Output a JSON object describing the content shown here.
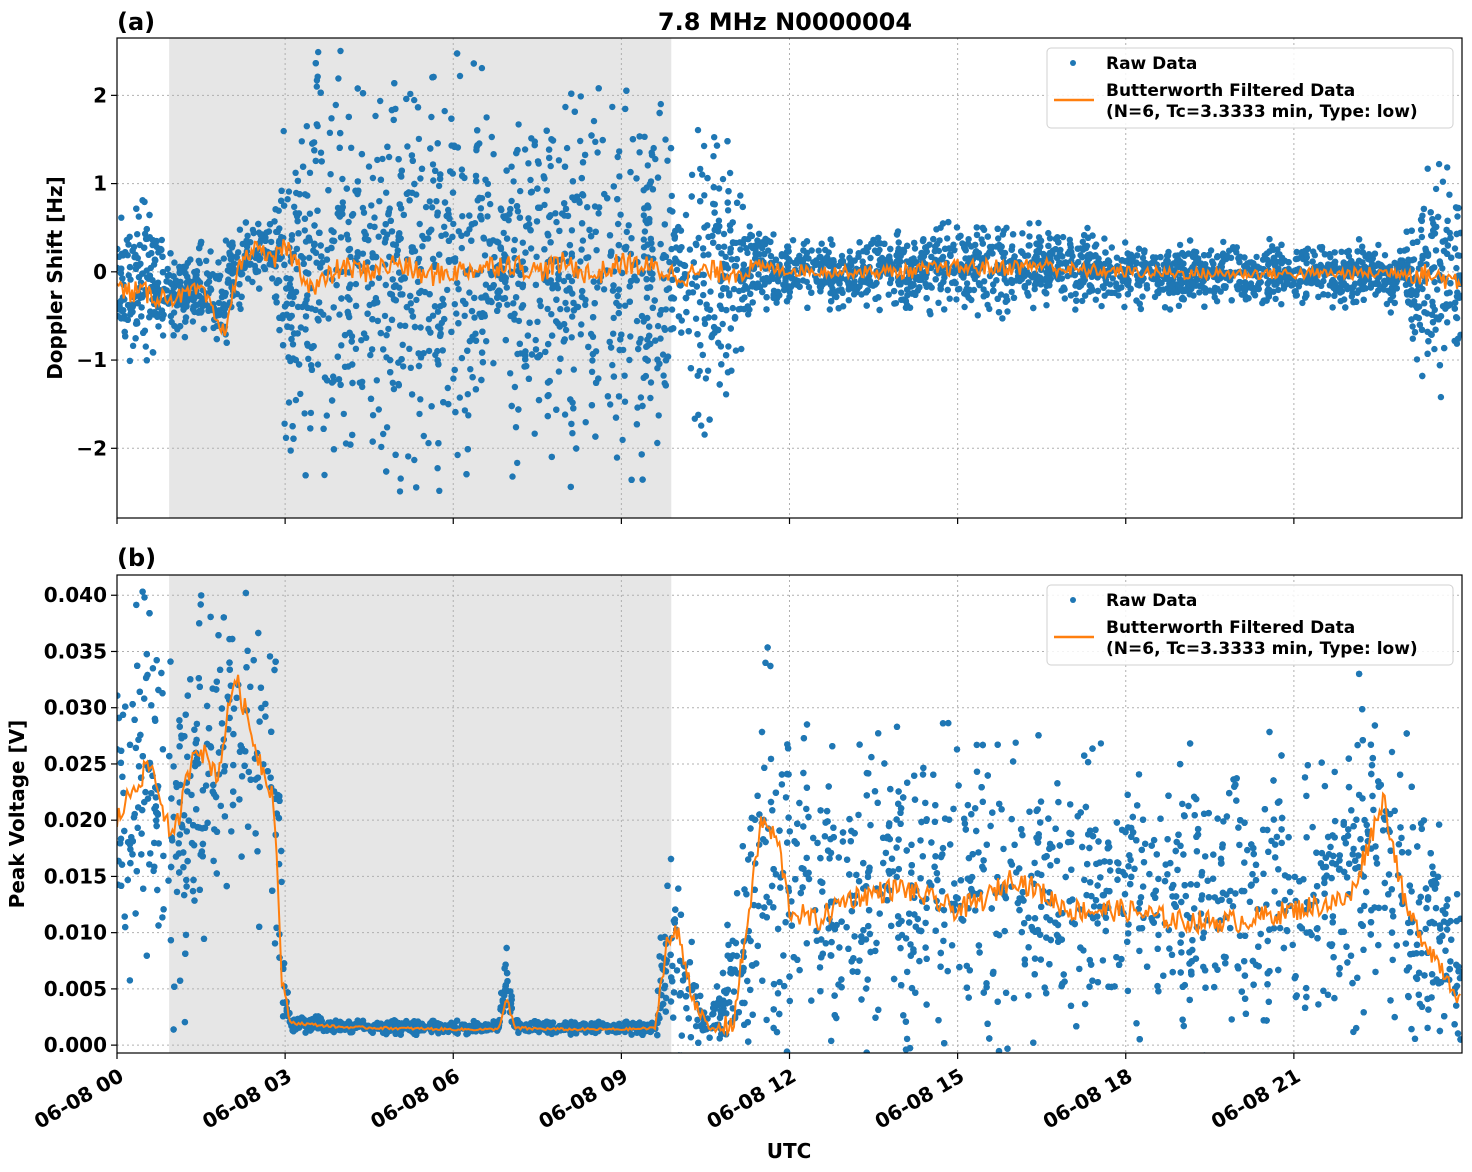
{
  "chart_data": [
    {
      "type": "scatter",
      "panel_label": "(a)",
      "title": "7.8 MHz N0000004",
      "xlabel": "",
      "ylabel": "Doppler Shift [Hz]",
      "xlim_hours": [
        0,
        24
      ],
      "ylim": [
        -2.79,
        2.65
      ],
      "yticks": [
        -2,
        -1,
        0,
        1,
        2
      ],
      "ytick_labels": [
        "−2",
        "−1",
        "0",
        "1",
        "2"
      ],
      "grid": true,
      "shaded_interval_hours": [
        0.93,
        9.89
      ],
      "legend": {
        "placement": "top-right",
        "entries": [
          "Raw Data",
          "Butterworth Filtered Data",
          "(N=6, Tc=3.3333 min, Type: low)"
        ]
      },
      "series": [
        {
          "name": "Raw Data",
          "kind": "scatter",
          "color": "#1f77b4",
          "envelope": {
            "x": [
              0,
              0.5,
              0.9,
              1.0,
              1.5,
              1.9,
              2.0,
              2.5,
              2.8,
              3.0,
              3.5,
              4.5,
              5.5,
              6.5,
              6.9,
              7.0,
              8.0,
              9.0,
              9.8,
              10.0,
              10.3,
              10.6,
              10.9,
              11.2,
              11.6,
              13,
              15,
              16.5,
              18,
              20,
              22,
              23,
              23.5,
              23.8,
              24
            ],
            "low": [
              -0.6,
              -0.7,
              -0.5,
              -0.5,
              -0.5,
              -0.8,
              -0.4,
              0.0,
              -0.1,
              -1.2,
              -1.4,
              -1.4,
              -1.4,
              -1.4,
              -0.3,
              -1.3,
              -1.4,
              -1.4,
              -1.3,
              -0.2,
              -1.0,
              -1.2,
              -0.8,
              -0.4,
              -0.25,
              -0.25,
              -0.3,
              -0.25,
              -0.25,
              -0.25,
              -0.25,
              -0.3,
              -1.0,
              -0.9,
              -0.5
            ],
            "high": [
              0.3,
              0.4,
              0.1,
              0.1,
              0.1,
              0.0,
              0.3,
              0.45,
              0.45,
              1.2,
              1.4,
              1.4,
              1.4,
              1.4,
              0.4,
              1.3,
              1.4,
              1.4,
              1.3,
              0.4,
              1.2,
              1.3,
              0.9,
              0.5,
              0.25,
              0.2,
              0.35,
              0.4,
              0.2,
              0.2,
              0.2,
              0.25,
              0.9,
              0.7,
              0.3
            ]
          }
        },
        {
          "name": "Butterworth Filtered Data",
          "kind": "line",
          "color": "#ff7f0e",
          "x": [
            0,
            0.5,
            1,
            1.5,
            1.9,
            2.2,
            2.5,
            2.8,
            3,
            3.5,
            4,
            4.5,
            5,
            5.5,
            6,
            6.5,
            7,
            7.5,
            8,
            8.5,
            9,
            9.5,
            9.8,
            10,
            10.5,
            11,
            11.5,
            12,
            13,
            14,
            15,
            16,
            16.5,
            17,
            18,
            19,
            20,
            21,
            22,
            23,
            23.5,
            24
          ],
          "values": [
            -0.2,
            -0.25,
            -0.3,
            -0.2,
            -0.7,
            0.1,
            0.3,
            0.1,
            0.3,
            -0.2,
            0.05,
            0.0,
            0.1,
            -0.05,
            0.0,
            0.05,
            0.1,
            0.0,
            0.1,
            -0.05,
            0.1,
            0.05,
            0.0,
            -0.05,
            0.0,
            0.0,
            0.05,
            0.02,
            0.0,
            0.0,
            0.05,
            0.05,
            0.08,
            0.02,
            0.0,
            -0.02,
            -0.02,
            -0.02,
            -0.02,
            0.0,
            -0.05,
            -0.1
          ]
        }
      ]
    },
    {
      "type": "scatter",
      "panel_label": "(b)",
      "title": "",
      "xlabel": "UTC",
      "ylabel": "Peak Voltage [V]",
      "xlim_hours": [
        0,
        24
      ],
      "ylim": [
        -0.0007,
        0.0418
      ],
      "yticks": [
        0,
        0.005,
        0.01,
        0.015,
        0.02,
        0.025,
        0.03,
        0.035,
        0.04
      ],
      "ytick_labels": [
        "0.000",
        "0.005",
        "0.010",
        "0.015",
        "0.020",
        "0.025",
        "0.030",
        "0.035",
        "0.040"
      ],
      "xticks_hours": [
        0,
        3,
        6,
        9,
        12,
        15,
        18,
        21
      ],
      "xtick_labels": [
        "06-08 00",
        "06-08 03",
        "06-08 06",
        "06-08 09",
        "06-08 12",
        "06-08 15",
        "06-08 18",
        "06-08 21"
      ],
      "grid": true,
      "shaded_interval_hours": [
        0.93,
        9.89
      ],
      "legend": {
        "placement": "top-right",
        "entries": [
          "Raw Data",
          "Butterworth Filtered Data",
          "(N=6, Tc=3.3333 min, Type: low)"
        ]
      },
      "series": [
        {
          "name": "Raw Data",
          "kind": "scatter",
          "color": "#1f77b4",
          "envelope": {
            "x": [
              0,
              0.5,
              1.0,
              1.5,
              2.0,
              2.3,
              2.7,
              2.9,
              2.95,
              3.1,
              4,
              5,
              6,
              6.8,
              6.95,
              7.1,
              8,
              9,
              9.6,
              9.8,
              10.2,
              10.5,
              10.8,
              11.2,
              11.6,
              12,
              13,
              14,
              15,
              16,
              17,
              18,
              19,
              20,
              21,
              22,
              22.6,
              23,
              23.5,
              24
            ],
            "low": [
              0.012,
              0.014,
              0.009,
              0.012,
              0.02,
              0.018,
              0.016,
              0.008,
              0.002,
              0.0015,
              0.0013,
              0.0012,
              0.0012,
              0.0012,
              0.004,
              0.0012,
              0.0012,
              0.0012,
              0.0012,
              0.003,
              0.002,
              0.001,
              0.0012,
              0.002,
              0.004,
              0.003,
              0.004,
              0.004,
              0.004,
              0.005,
              0.004,
              0.005,
              0.004,
              0.005,
              0.005,
              0.005,
              0.006,
              0.004,
              0.002,
              0.002
            ],
            "high": [
              0.032,
              0.033,
              0.03,
              0.032,
              0.036,
              0.035,
              0.032,
              0.03,
              0.01,
              0.0025,
              0.002,
              0.002,
              0.0019,
              0.0019,
              0.008,
              0.0022,
              0.0019,
              0.0019,
              0.002,
              0.014,
              0.012,
              0.002,
              0.006,
              0.016,
              0.03,
              0.024,
              0.022,
              0.023,
              0.022,
              0.024,
              0.022,
              0.022,
              0.021,
              0.021,
              0.022,
              0.024,
              0.031,
              0.022,
              0.018,
              0.01
            ]
          }
        },
        {
          "name": "Butterworth Filtered Data",
          "kind": "line",
          "color": "#ff7f0e",
          "x": [
            0,
            0.3,
            0.6,
            1,
            1.4,
            1.8,
            2.1,
            2.5,
            2.8,
            2.95,
            3.1,
            4,
            5,
            6,
            6.8,
            6.95,
            7.1,
            8,
            9,
            9.6,
            9.8,
            10,
            10.3,
            10.6,
            11,
            11.5,
            11.8,
            12,
            12.5,
            13,
            14,
            15,
            15.5,
            16,
            17,
            18,
            19,
            20,
            21,
            22,
            22.6,
            23,
            23.5,
            24
          ],
          "values": [
            0.02,
            0.023,
            0.025,
            0.018,
            0.027,
            0.024,
            0.033,
            0.026,
            0.022,
            0.005,
            0.002,
            0.0016,
            0.0015,
            0.0014,
            0.0014,
            0.004,
            0.0015,
            0.0014,
            0.0014,
            0.0015,
            0.009,
            0.01,
            0.004,
            0.0012,
            0.002,
            0.02,
            0.018,
            0.012,
            0.011,
            0.013,
            0.014,
            0.012,
            0.013,
            0.015,
            0.012,
            0.012,
            0.011,
            0.011,
            0.012,
            0.013,
            0.022,
            0.012,
            0.008,
            0.004
          ]
        }
      ]
    }
  ]
}
